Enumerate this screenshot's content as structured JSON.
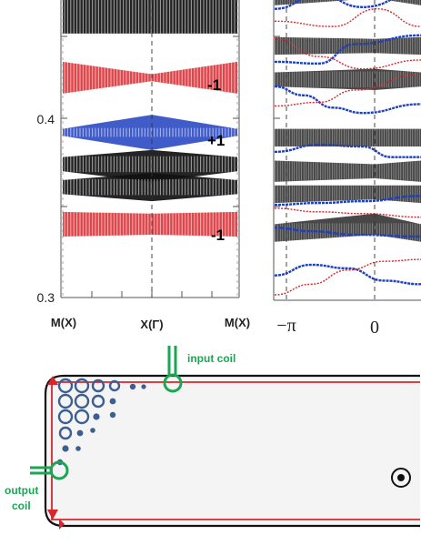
{
  "left_panel": {
    "y_ticks": [
      "0.4",
      "0.3"
    ],
    "x_ticks": [
      "M(X)",
      "X(Γ)",
      "M(X)"
    ],
    "band_labels": [
      "-1",
      "+1",
      "-1"
    ]
  },
  "right_panel": {
    "x_ticks": [
      "−π",
      "0"
    ]
  },
  "diagram": {
    "input_coil_label": "input coil",
    "output_coil_label_line1": "output",
    "output_coil_label_line2": "coil",
    "magnetic_field_symbol": "⊙"
  },
  "colors": {
    "band_black": "#111111",
    "band_red": "#d8262c",
    "band_blue": "#1f3fbf",
    "coil_green": "#1aa653",
    "edge_red": "#d8262c",
    "resonator_blue": "#3d5f8f",
    "sample_fill": "#f4f4f4"
  },
  "chart_data": [
    {
      "type": "band-structure",
      "title": "",
      "xlabel": "",
      "ylabel": "",
      "categories": [
        "M(X)",
        "X(Γ)",
        "M(X)"
      ],
      "ylim": [
        0.3,
        0.47
      ],
      "y_ticks": [
        0.3,
        0.4
      ],
      "bands": [
        {
          "color": "black",
          "y_edge": [
            0.448,
            0.476
          ],
          "y_center": [
            0.448,
            0.476
          ]
        },
        {
          "color": "red",
          "y_edge": [
            0.414,
            0.432
          ],
          "y_center": [
            0.421,
            0.425
          ],
          "label": "-1"
        },
        {
          "color": "blue",
          "y_edge": [
            0.39,
            0.394
          ],
          "y_center": [
            0.382,
            0.402
          ],
          "label": "+1"
        },
        {
          "color": "black",
          "y_edge": [
            0.37,
            0.378
          ],
          "y_center": [
            0.364,
            0.382
          ]
        },
        {
          "color": "black",
          "y_edge": [
            0.357,
            0.365
          ],
          "y_center": [
            0.353,
            0.369
          ]
        },
        {
          "color": "red",
          "y_edge": [
            0.333,
            0.347
          ],
          "y_center": [
            0.334,
            0.346
          ],
          "label": "-1"
        }
      ]
    },
    {
      "type": "band-structure",
      "title": "",
      "xlabel": "",
      "ylabel": "",
      "x_ticks": [
        "−π",
        "0"
      ],
      "ylim": [
        0.3,
        0.47
      ],
      "bulk_bands": [
        {
          "y_edge": [
            0.464,
            0.476
          ],
          "y_center": [
            0.468,
            0.472
          ]
        },
        {
          "y_edge": [
            0.436,
            0.446
          ],
          "y_center": [
            0.437,
            0.445
          ]
        },
        {
          "y_edge": [
            0.418,
            0.426
          ],
          "y_center": [
            0.416,
            0.428
          ]
        },
        {
          "y_edge": [
            0.384,
            0.394
          ],
          "y_center": [
            0.384,
            0.394
          ]
        },
        {
          "y_edge": [
            0.364,
            0.376
          ],
          "y_center": [
            0.366,
            0.374
          ]
        },
        {
          "y_edge": [
            0.352,
            0.362
          ],
          "y_center": [
            0.354,
            0.362
          ]
        },
        {
          "y_edge": [
            0.33,
            0.34
          ],
          "y_center": [
            0.334,
            0.346
          ]
        }
      ],
      "edge_states": [
        {
          "color": "blue",
          "points": [
            [
              0.0,
              0.462
            ],
            [
              0.3,
              0.47
            ],
            [
              0.6,
              0.463
            ],
            [
              1.0,
              0.472
            ]
          ]
        },
        {
          "color": "red",
          "points": [
            [
              0.0,
              0.455
            ],
            [
              0.4,
              0.452
            ],
            [
              0.7,
              0.462
            ],
            [
              1.0,
              0.452
            ]
          ]
        },
        {
          "color": "blue",
          "points": [
            [
              0.0,
              0.432
            ],
            [
              0.3,
              0.431
            ],
            [
              0.55,
              0.442
            ],
            [
              1.0,
              0.447
            ]
          ]
        },
        {
          "color": "red",
          "points": [
            [
              0.0,
              0.445
            ],
            [
              0.3,
              0.435
            ],
            [
              0.6,
              0.428
            ],
            [
              1.0,
              0.433
            ]
          ]
        },
        {
          "color": "blue",
          "points": [
            [
              0.0,
              0.418
            ],
            [
              0.2,
              0.413
            ],
            [
              0.4,
              0.406
            ],
            [
              0.6,
              0.403
            ],
            [
              1.0,
              0.408
            ]
          ]
        },
        {
          "color": "red",
          "points": [
            [
              0.0,
              0.407
            ],
            [
              0.3,
              0.409
            ],
            [
              0.55,
              0.416
            ],
            [
              1.0,
              0.425
            ]
          ]
        },
        {
          "color": "blue",
          "points": [
            [
              0.0,
              0.381
            ],
            [
              0.3,
              0.385
            ],
            [
              0.6,
              0.384
            ],
            [
              0.8,
              0.378
            ],
            [
              1.0,
              0.378
            ]
          ]
        },
        {
          "color": "blue",
          "points": [
            [
              0.0,
              0.351
            ],
            [
              0.3,
              0.352
            ],
            [
              0.6,
              0.353
            ],
            [
              1.0,
              0.356
            ]
          ]
        },
        {
          "color": "red",
          "points": [
            [
              0.0,
              0.349
            ],
            [
              0.3,
              0.347
            ],
            [
              0.6,
              0.346
            ],
            [
              1.0,
              0.344
            ]
          ]
        },
        {
          "color": "blue",
          "points": [
            [
              0.0,
              0.338
            ],
            [
              0.25,
              0.336
            ],
            [
              0.55,
              0.334
            ],
            [
              1.0,
              0.333
            ]
          ]
        },
        {
          "color": "blue",
          "points": [
            [
              0.0,
              0.311
            ],
            [
              0.25,
              0.317
            ],
            [
              0.5,
              0.315
            ],
            [
              0.75,
              0.308
            ],
            [
              1.0,
              0.306
            ]
          ]
        },
        {
          "color": "red",
          "points": [
            [
              0.0,
              0.3
            ],
            [
              0.25,
              0.306
            ],
            [
              0.5,
              0.314
            ],
            [
              0.75,
              0.319
            ],
            [
              1.0,
              0.32
            ]
          ]
        }
      ]
    }
  ]
}
